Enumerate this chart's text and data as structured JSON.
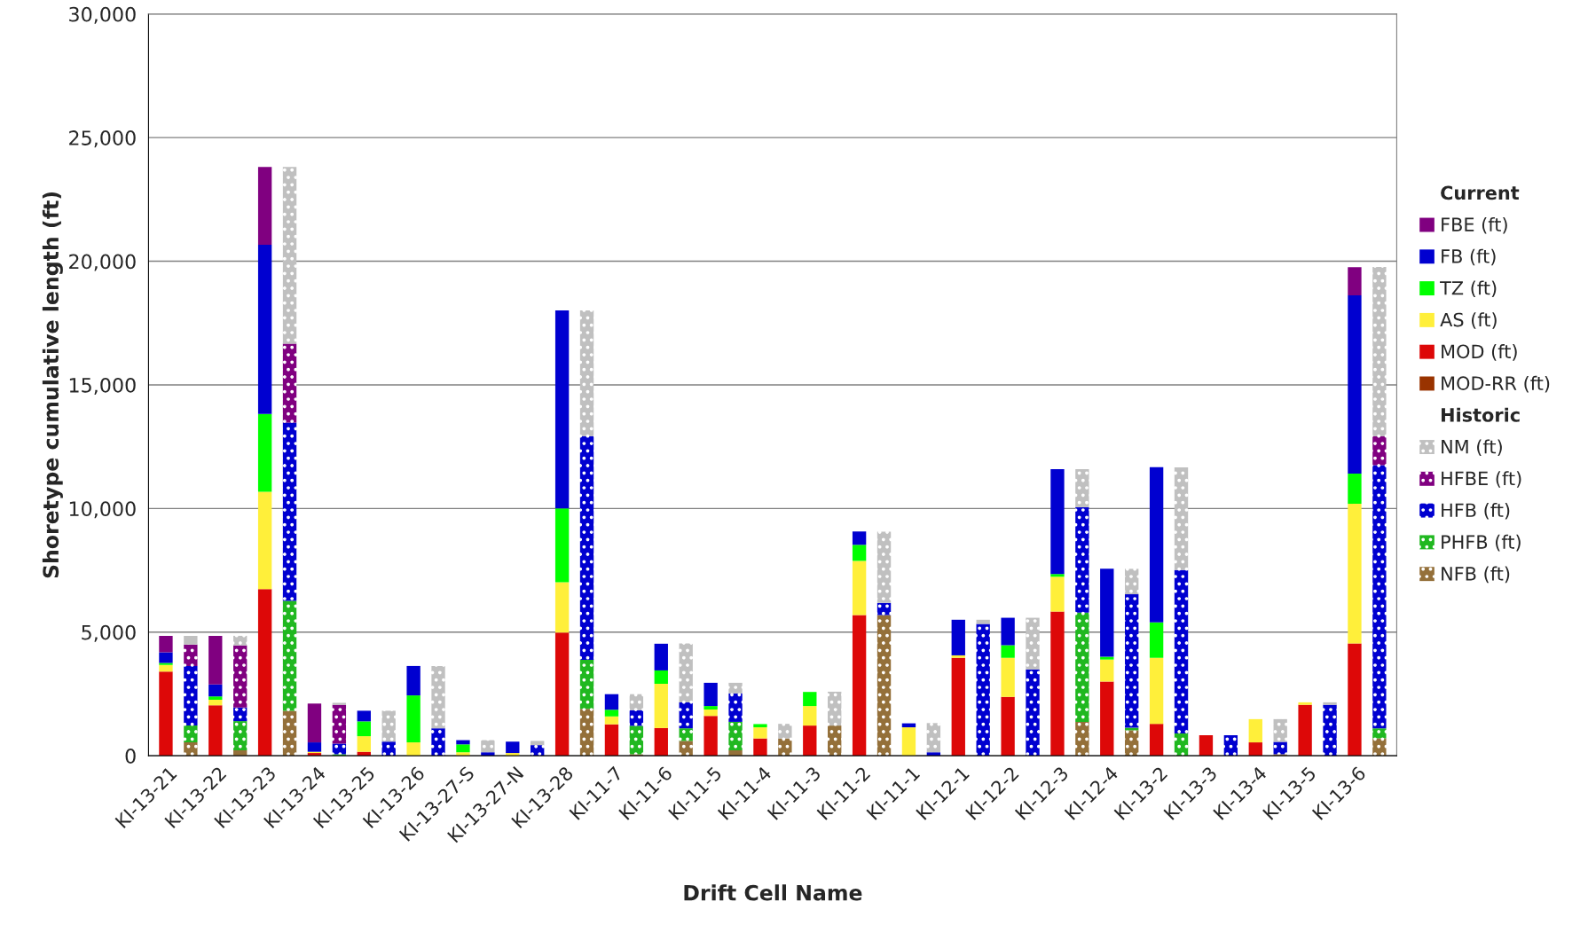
{
  "chart_data": {
    "type": "bar",
    "stacked": true,
    "xlabel": "Drift Cell Name",
    "ylabel": "Shoretype cumulative length (ft)",
    "categories": [
      "KI-13-21",
      null,
      "KI-13-22",
      null,
      "KI-13-23",
      null,
      "KI-13-24",
      null,
      "KI-13-25",
      null,
      "KI-13-26",
      null,
      "KI-13-27-S",
      null,
      "KI-13-27-N",
      null,
      "KI-13-28",
      null,
      "KI-11-7",
      null,
      "KI-11-6",
      null,
      "KI-11-5",
      null,
      "KI-11-4",
      null,
      "KI-11-3",
      null,
      "KI-11-2",
      null,
      "KI-11-1",
      null,
      "KI-12-1",
      null,
      "KI-12-2",
      null,
      "KI-12-3",
      null,
      "KI-12-4",
      null,
      "KI-13-2",
      null,
      "KI-13-3",
      null,
      "KI-13-4",
      null,
      "KI-13-5",
      null,
      "KI-13-6",
      null
    ],
    "series": [
      {
        "name": "MOD-RR (ft)",
        "color": "#993300",
        "values": [
          null,
          null,
          null,
          null,
          null,
          null,
          null,
          null,
          null,
          null,
          null,
          null,
          null,
          null,
          null,
          null,
          null,
          null,
          null,
          null,
          null,
          null,
          null,
          null,
          null,
          null,
          null,
          null,
          null,
          null,
          null,
          null,
          null,
          null,
          null,
          null,
          null,
          null,
          null,
          null,
          null,
          null,
          null,
          null,
          null,
          null,
          null,
          null,
          null,
          null
        ]
      },
      {
        "name": "MOD (ft)",
        "color": "#dd0808",
        "values": [
          3400,
          null,
          2040,
          null,
          6740,
          null,
          110,
          null,
          160,
          null,
          null,
          null,
          null,
          null,
          null,
          null,
          4980,
          null,
          1270,
          null,
          1120,
          null,
          1610,
          null,
          700,
          null,
          1220,
          null,
          5690,
          null,
          null,
          null,
          3960,
          null,
          2380,
          null,
          5830,
          null,
          3000,
          null,
          1290,
          null,
          830,
          null,
          540,
          null,
          2060,
          null,
          4540,
          null
        ]
      },
      {
        "name": "AS (ft)",
        "color": "#ffef3a",
        "values": [
          270,
          null,
          220,
          null,
          3940,
          null,
          50,
          null,
          630,
          null,
          540,
          null,
          140,
          null,
          110,
          null,
          2040,
          null,
          320,
          null,
          1790,
          null,
          260,
          null,
          450,
          null,
          790,
          null,
          2190,
          null,
          1150,
          null,
          100,
          null,
          1580,
          null,
          1410,
          null,
          890,
          null,
          2670,
          null,
          null,
          null,
          940,
          null,
          100,
          null,
          5650,
          null
        ]
      },
      {
        "name": "TZ (ft)",
        "color": "#00ff00",
        "values": [
          80,
          null,
          140,
          null,
          3140,
          null,
          null,
          null,
          600,
          null,
          1900,
          null,
          320,
          null,
          null,
          null,
          2980,
          null,
          270,
          null,
          540,
          null,
          140,
          null,
          130,
          null,
          570,
          null,
          650,
          null,
          null,
          null,
          null,
          null,
          510,
          null,
          110,
          null,
          110,
          null,
          1430,
          null,
          null,
          null,
          null,
          null,
          null,
          null,
          1220,
          null
        ]
      },
      {
        "name": "FB (ft)",
        "color": "#0000d0",
        "values": [
          430,
          null,
          480,
          null,
          6850,
          null,
          380,
          null,
          430,
          null,
          1190,
          null,
          170,
          null,
          460,
          null,
          8010,
          null,
          630,
          null,
          1080,
          null,
          940,
          null,
          null,
          null,
          null,
          null,
          540,
          null,
          160,
          null,
          1440,
          null,
          1110,
          null,
          4240,
          null,
          3560,
          null,
          6280,
          null,
          null,
          null,
          null,
          null,
          null,
          null,
          7210,
          null
        ]
      },
      {
        "name": "FBE (ft)",
        "color": "#800080",
        "values": [
          670,
          null,
          1970,
          null,
          3140,
          null,
          1570,
          null,
          null,
          null,
          null,
          null,
          null,
          null,
          null,
          null,
          null,
          null,
          null,
          null,
          null,
          null,
          null,
          null,
          null,
          null,
          null,
          null,
          null,
          null,
          null,
          null,
          null,
          null,
          null,
          null,
          null,
          null,
          null,
          null,
          null,
          null,
          null,
          null,
          null,
          null,
          null,
          null,
          1140,
          null
        ]
      },
      {
        "name": "NFB (ft)",
        "color": "#94703a",
        "values": [
          null,
          540,
          null,
          220,
          null,
          1820,
          null,
          null,
          null,
          null,
          null,
          null,
          null,
          null,
          null,
          null,
          null,
          1900,
          null,
          60,
          null,
          600,
          null,
          220,
          null,
          700,
          null,
          1220,
          null,
          5690,
          null,
          null,
          null,
          null,
          null,
          null,
          null,
          1370,
          null,
          1030,
          null,
          null,
          null,
          null,
          null,
          60,
          null,
          null,
          null,
          700
        ]
      },
      {
        "name": "PHFB (ft)",
        "color": "#20b820",
        "values": [
          null,
          680,
          null,
          1180,
          null,
          4440,
          null,
          60,
          null,
          null,
          null,
          null,
          null,
          null,
          null,
          null,
          null,
          1980,
          null,
          1150,
          null,
          510,
          null,
          1150,
          null,
          null,
          null,
          null,
          null,
          null,
          null,
          null,
          null,
          null,
          null,
          null,
          null,
          4420,
          null,
          100,
          null,
          900,
          null,
          null,
          null,
          null,
          null,
          null,
          null,
          410
        ]
      },
      {
        "name": "HFB (ft)",
        "color": "#0000d0",
        "values": [
          null,
          2410,
          null,
          550,
          null,
          7210,
          null,
          430,
          null,
          570,
          null,
          1110,
          null,
          140,
          null,
          430,
          null,
          9050,
          null,
          630,
          null,
          1050,
          null,
          1150,
          null,
          null,
          null,
          null,
          null,
          490,
          null,
          140,
          null,
          5330,
          null,
          3490,
          null,
          4260,
          null,
          5400,
          null,
          6610,
          null,
          830,
          null,
          500,
          null,
          2060,
          null,
          10640
        ]
      },
      {
        "name": "HFBE (ft)",
        "color": "#800080",
        "values": [
          null,
          870,
          null,
          2510,
          null,
          3200,
          null,
          1570,
          null,
          null,
          null,
          null,
          null,
          null,
          null,
          null,
          null,
          null,
          null,
          null,
          null,
          null,
          null,
          null,
          null,
          null,
          null,
          null,
          null,
          null,
          null,
          null,
          null,
          null,
          null,
          null,
          null,
          null,
          null,
          null,
          null,
          null,
          null,
          null,
          null,
          null,
          null,
          null,
          null,
          1170
        ]
      },
      {
        "name": "NM (ft)",
        "color": "#c0c0c0",
        "values": [
          null,
          350,
          null,
          390,
          null,
          7140,
          null,
          80,
          null,
          1250,
          null,
          2520,
          null,
          490,
          null,
          170,
          null,
          5080,
          null,
          650,
          null,
          2380,
          null,
          430,
          null,
          590,
          null,
          1370,
          null,
          2880,
          null,
          1180,
          null,
          170,
          null,
          2090,
          null,
          1540,
          null,
          1030,
          null,
          4150,
          null,
          null,
          null,
          920,
          null,
          100,
          null,
          6850
        ]
      }
    ],
    "ylim": [
      0,
      30000
    ],
    "yticks": [
      0,
      {
        "value": 5000,
        "label": "5,000"
      },
      {
        "value": 10000,
        "label": "10,000"
      },
      {
        "value": 15000,
        "label": "15,000"
      },
      {
        "value": 20000,
        "label": "20,000"
      },
      {
        "value": 25000,
        "label": "25,000"
      },
      {
        "value": 30000,
        "label": "30,000"
      }
    ],
    "grid": "y",
    "legend": "right",
    "annotations": [
      "Current",
      "Historic"
    ]
  }
}
